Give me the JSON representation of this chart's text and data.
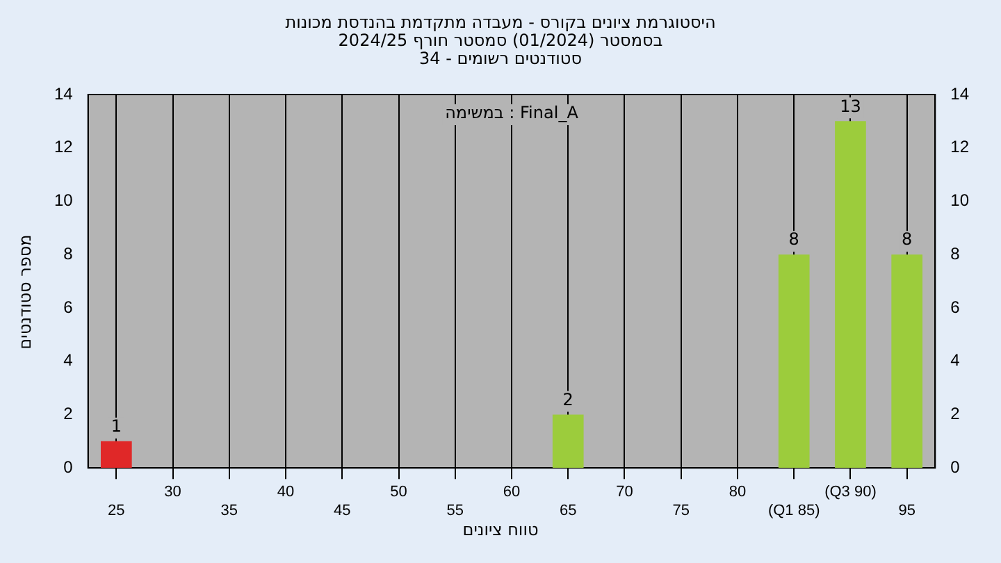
{
  "chart_data": {
    "type": "bar",
    "title": "היסטוגרמת ציונים בקורס - מעבדה מתקדמת בהנדסת מכונות",
    "subtitle": "בסמסטר  (01/2024)  סמסטר חורף 2024/25\nסטודנטים רשומים - 34",
    "xlabel": "טווח ציונים",
    "ylabel": "מספר סטודנטים",
    "annotations": [
      "במשימה : Final_A"
    ],
    "categories": [
      "25",
      "30",
      "35",
      "40",
      "45",
      "50",
      "55",
      "60",
      "65",
      "70",
      "75",
      "80",
      "(Q1 85)",
      "(Q3 90)",
      "95"
    ],
    "values": [
      1,
      0,
      0,
      0,
      0,
      0,
      0,
      0,
      2,
      0,
      0,
      0,
      8,
      13,
      8
    ],
    "colors": [
      "#e02828",
      "#9ccc3c",
      "#9ccc3c",
      "#9ccc3c",
      "#9ccc3c",
      "#9ccc3c",
      "#9ccc3c",
      "#9ccc3c",
      "#9ccc3c",
      "#9ccc3c",
      "#9ccc3c",
      "#9ccc3c",
      "#9ccc3c",
      "#9ccc3c",
      "#9ccc3c"
    ],
    "ylim": [
      0,
      14
    ],
    "yticks": [
      0,
      2,
      4,
      6,
      8,
      10,
      12,
      14
    ],
    "y2lim": [
      0,
      14
    ],
    "y2ticks": [
      0,
      2,
      4,
      6,
      8,
      10,
      12,
      14
    ],
    "value_labels": [
      "1",
      null,
      null,
      null,
      null,
      null,
      null,
      null,
      "2",
      null,
      null,
      null,
      "8",
      "13",
      "8"
    ],
    "grid": "x",
    "legend": false
  }
}
